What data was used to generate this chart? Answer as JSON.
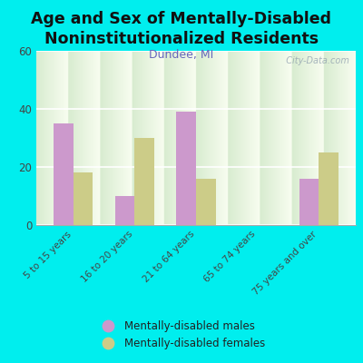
{
  "title": "Age and Sex of Mentally-Disabled\nNoninstitutionalized Residents",
  "subtitle": "Dundee, MI",
  "categories": [
    "5 to 15 years",
    "16 to 20 years",
    "21 to 64 years",
    "65 to 74 years",
    "75 years and over"
  ],
  "males": [
    35,
    10,
    39,
    0,
    16
  ],
  "females": [
    18,
    30,
    16,
    0,
    25
  ],
  "male_color": "#cc99cc",
  "female_color": "#cccc88",
  "bg_color": "#00eeee",
  "chart_bg_top": "#d8ecd0",
  "chart_bg_bottom": "#f8fdf0",
  "ylim": [
    0,
    60
  ],
  "yticks": [
    0,
    20,
    40,
    60
  ],
  "bar_width": 0.32,
  "title_fontsize": 12.5,
  "subtitle_fontsize": 9,
  "legend_labels": [
    "Mentally-disabled males",
    "Mentally-disabled females"
  ],
  "watermark": "  City-Data.com"
}
